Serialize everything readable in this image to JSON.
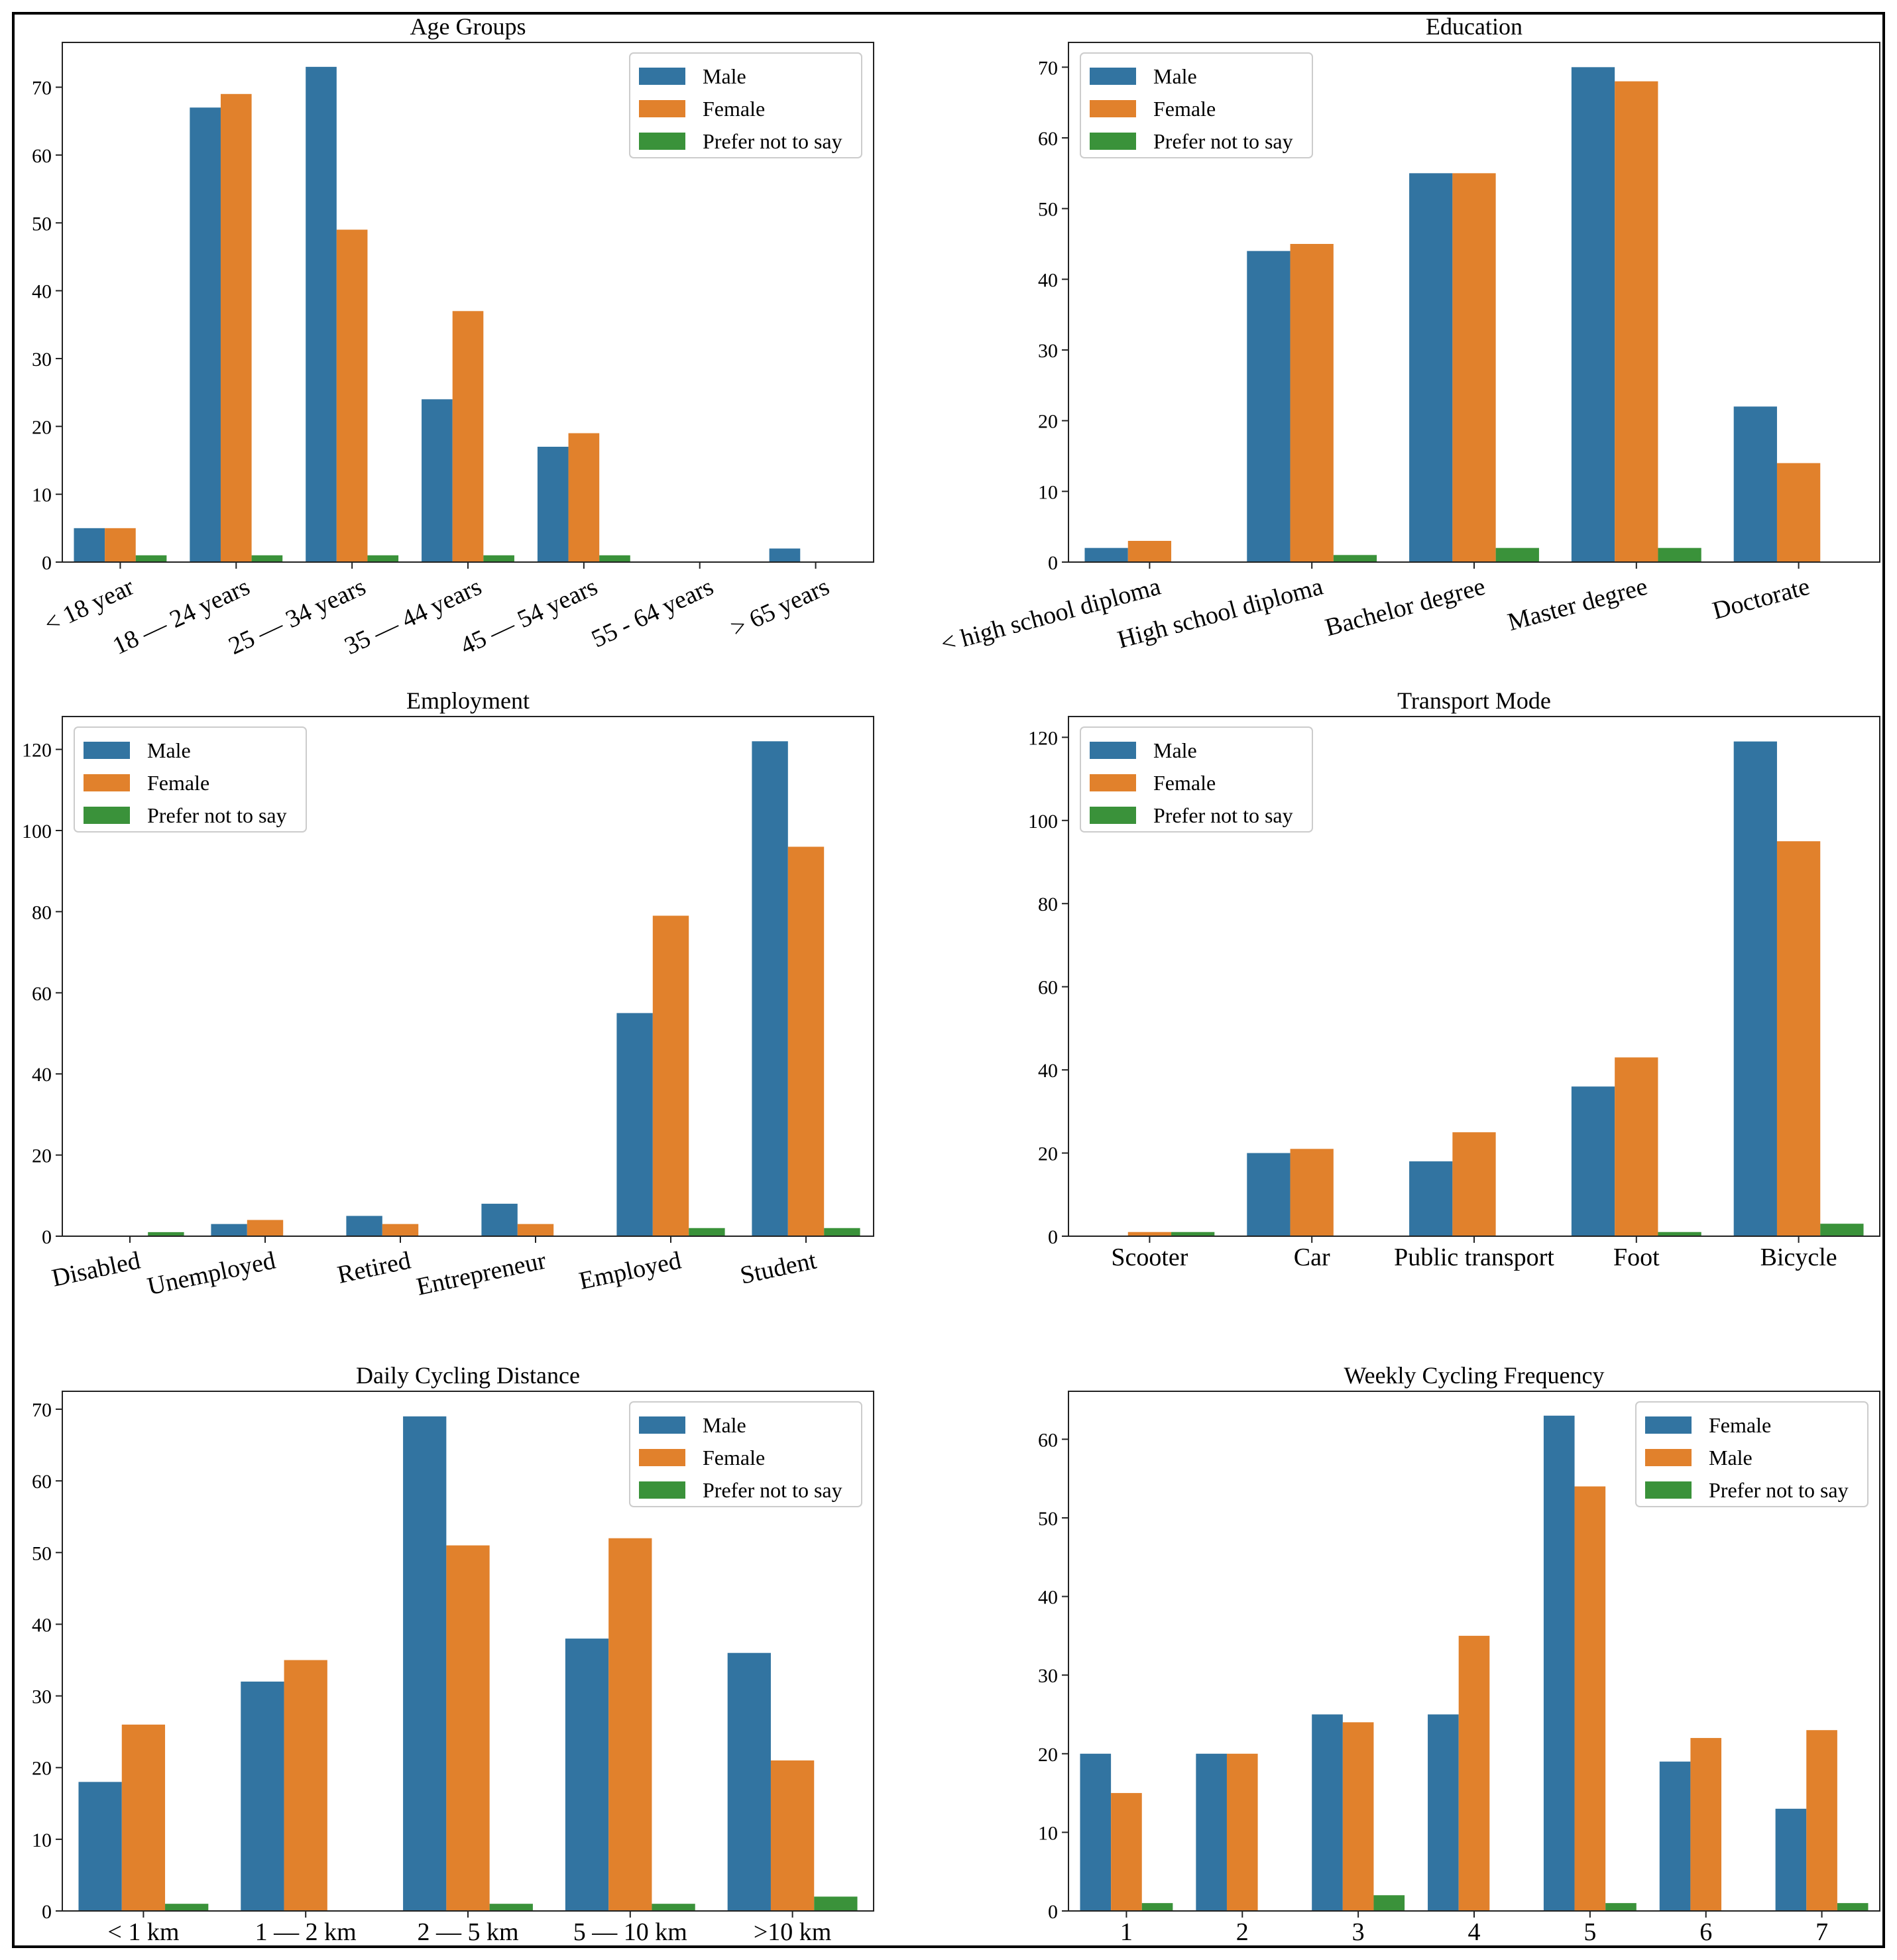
{
  "colors": {
    "blue": "#3274a1",
    "orange": "#e1812c",
    "green": "#3a923a",
    "legend_border": "#cccccc"
  },
  "chart_data": [
    {
      "type": "bar",
      "title": "Age Groups",
      "categories": [
        "< 18 year",
        "18 — 24 years",
        "25 — 34 years",
        "35 — 44 years",
        "45 — 54 years",
        "55 - 64 years",
        "> 65 years"
      ],
      "series": [
        {
          "name": "Male",
          "values": [
            5,
            67,
            73,
            24,
            17,
            0,
            2
          ]
        },
        {
          "name": "Female",
          "values": [
            5,
            69,
            49,
            37,
            19,
            0,
            0
          ]
        },
        {
          "name": "Prefer not to say",
          "values": [
            1,
            1,
            1,
            1,
            1,
            0,
            0
          ]
        }
      ],
      "ylim": [
        0,
        76.6
      ],
      "yticks": [
        0,
        10,
        20,
        30,
        40,
        50,
        60,
        70
      ],
      "legend": "top-right",
      "tick_rotation": 25
    },
    {
      "type": "bar",
      "title": "Education",
      "categories": [
        "< high school diploma",
        "High school diploma",
        "Bachelor degree",
        "Master degree",
        "Doctorate"
      ],
      "series": [
        {
          "name": "Male",
          "values": [
            2,
            44,
            55,
            70,
            22
          ]
        },
        {
          "name": "Female",
          "values": [
            3,
            45,
            55,
            68,
            14
          ]
        },
        {
          "name": "Prefer not to say",
          "values": [
            0,
            1,
            2,
            2,
            0
          ]
        }
      ],
      "ylim": [
        0,
        73.5
      ],
      "yticks": [
        0,
        10,
        20,
        30,
        40,
        50,
        60,
        70
      ],
      "legend": "top-left",
      "tick_rotation": 15
    },
    {
      "type": "bar",
      "title": "Employment",
      "categories": [
        "Disabled",
        "Unemployed",
        "Retired",
        "Entrepreneur",
        "Employed",
        "Student"
      ],
      "series": [
        {
          "name": "Male",
          "values": [
            0,
            3,
            5,
            8,
            55,
            122
          ]
        },
        {
          "name": "Female",
          "values": [
            0,
            4,
            3,
            3,
            79,
            96
          ]
        },
        {
          "name": "Prefer not to say",
          "values": [
            1,
            0,
            0,
            0,
            2,
            2
          ]
        }
      ],
      "ylim": [
        0,
        128.1
      ],
      "yticks": [
        0,
        20,
        40,
        60,
        80,
        100,
        120
      ],
      "legend": "top-left",
      "tick_rotation": 12
    },
    {
      "type": "bar",
      "title": "Transport Mode",
      "categories": [
        "Scooter",
        "Car",
        "Public transport",
        "Foot",
        "Bicycle"
      ],
      "series": [
        {
          "name": "Male",
          "values": [
            0,
            20,
            18,
            36,
            119
          ]
        },
        {
          "name": "Female",
          "values": [
            1,
            21,
            25,
            43,
            95
          ]
        },
        {
          "name": "Prefer not to say",
          "values": [
            1,
            0,
            0,
            1,
            3
          ]
        }
      ],
      "ylim": [
        0,
        125
      ],
      "yticks": [
        0,
        20,
        40,
        60,
        80,
        100,
        120
      ],
      "legend": "top-left",
      "tick_rotation": 0
    },
    {
      "type": "bar",
      "title": "Daily Cycling Distance",
      "categories": [
        "< 1 km",
        "1 — 2 km",
        "2 — 5 km",
        "5 — 10 km",
        ">10 km"
      ],
      "series": [
        {
          "name": "Male",
          "values": [
            18,
            32,
            69,
            38,
            36
          ]
        },
        {
          "name": "Female",
          "values": [
            26,
            35,
            51,
            52,
            21
          ]
        },
        {
          "name": "Prefer not to say",
          "values": [
            1,
            0,
            1,
            1,
            2
          ]
        }
      ],
      "ylim": [
        0,
        72.5
      ],
      "yticks": [
        0,
        10,
        20,
        30,
        40,
        50,
        60,
        70
      ],
      "legend": "top-right",
      "tick_rotation": 0
    },
    {
      "type": "bar",
      "title": "Weekly Cycling Frequency",
      "categories": [
        "1",
        "2",
        "3",
        "4",
        "5",
        "6",
        "7"
      ],
      "series": [
        {
          "name": "Female",
          "values": [
            20,
            20,
            25,
            25,
            63,
            19,
            13
          ]
        },
        {
          "name": "Male",
          "values": [
            15,
            20,
            24,
            35,
            54,
            22,
            23
          ]
        },
        {
          "name": "Prefer not to say",
          "values": [
            1,
            0,
            2,
            0,
            1,
            0,
            1
          ]
        }
      ],
      "ylim": [
        0,
        66.1
      ],
      "yticks": [
        0,
        10,
        20,
        30,
        40,
        50,
        60
      ],
      "legend": "top-right",
      "tick_rotation": 0
    }
  ]
}
